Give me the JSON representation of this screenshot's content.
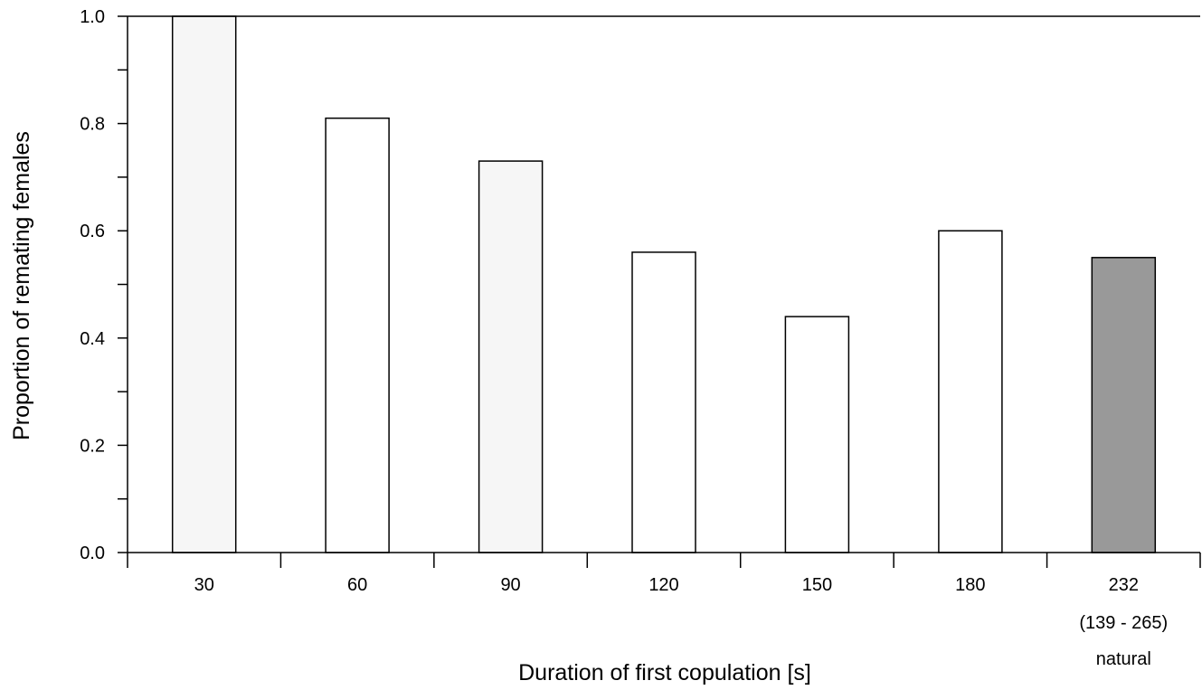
{
  "chart_data": {
    "type": "bar",
    "title": "",
    "xlabel": "Duration of first copulation [s]",
    "ylabel": "Proportion of remating females",
    "ylim": [
      0,
      1.0
    ],
    "yticks": [
      "0.0",
      "0.2",
      "0.4",
      "0.6",
      "0.8",
      "1.0"
    ],
    "grid": false,
    "categories": [
      {
        "label": "30",
        "sublabels": []
      },
      {
        "label": "60",
        "sublabels": []
      },
      {
        "label": "90",
        "sublabels": []
      },
      {
        "label": "120",
        "sublabels": []
      },
      {
        "label": "150",
        "sublabels": []
      },
      {
        "label": "180",
        "sublabels": []
      },
      {
        "label": "232",
        "sublabels": [
          "(139 - 265)",
          "natural"
        ]
      }
    ],
    "values": [
      1.0,
      0.81,
      0.73,
      0.56,
      0.44,
      0.6,
      0.55
    ],
    "bar_colors": [
      "#f6f6f6",
      "#ffffff",
      "#f6f6f6",
      "#ffffff",
      "#ffffff",
      "#ffffff",
      "#999999"
    ]
  }
}
